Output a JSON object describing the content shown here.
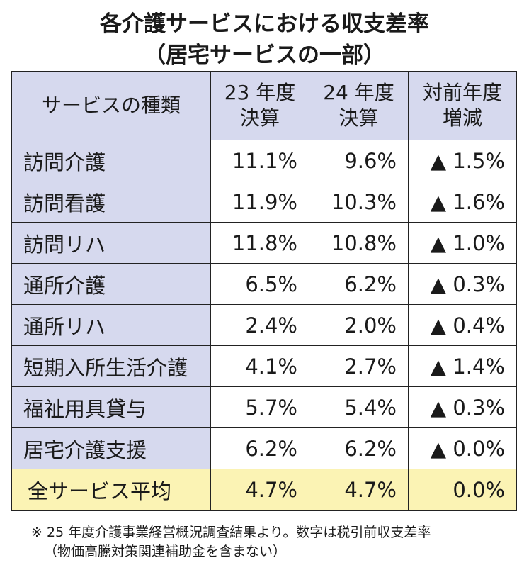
{
  "title": {
    "line1": "各介護サービスにおける収支差率",
    "line2": "（居宅サービスの一部）"
  },
  "table": {
    "headers": [
      {
        "line1": "サービスの種類",
        "line2": ""
      },
      {
        "line1": "23 年度",
        "line2": "決算"
      },
      {
        "line1": "24 年度",
        "line2": "決算"
      },
      {
        "line1": "対前年度",
        "line2": "増減"
      }
    ],
    "rows": [
      {
        "service": "訪問介護",
        "fy23": "11.1%",
        "fy24": "9.6%",
        "change": "▲ 1.5%"
      },
      {
        "service": "訪問看護",
        "fy23": "11.9%",
        "fy24": "10.3%",
        "change": "▲ 1.6%"
      },
      {
        "service": "訪問リハ",
        "fy23": "11.8%",
        "fy24": "10.8%",
        "change": "▲ 1.0%"
      },
      {
        "service": "通所介護",
        "fy23": "6.5%",
        "fy24": "6.2%",
        "change": "▲ 0.3%"
      },
      {
        "service": "通所リハ",
        "fy23": "2.4%",
        "fy24": "2.0%",
        "change": "▲ 0.4%"
      },
      {
        "service": "短期入所生活介護",
        "fy23": "4.1%",
        "fy24": "2.7%",
        "change": "▲ 1.4%"
      },
      {
        "service": "福祉用具貸与",
        "fy23": "5.7%",
        "fy24": "5.4%",
        "change": "▲ 0.3%"
      },
      {
        "service": "居宅介護支援",
        "fy23": "6.2%",
        "fy24": "6.2%",
        "change": "▲ 0.0%"
      }
    ],
    "average": {
      "service": "全サービス平均",
      "fy23": "4.7%",
      "fy24": "4.7%",
      "change": "0.0%"
    }
  },
  "colors": {
    "header_bg": "#d6d9ee",
    "average_bg": "#fbf3b4"
  },
  "note": {
    "line1": "※ 25 年度介護事業経営概況調査結果より。数字は税引前収支差率",
    "line2": "（物価高騰対策関連補助金を含まない）"
  }
}
